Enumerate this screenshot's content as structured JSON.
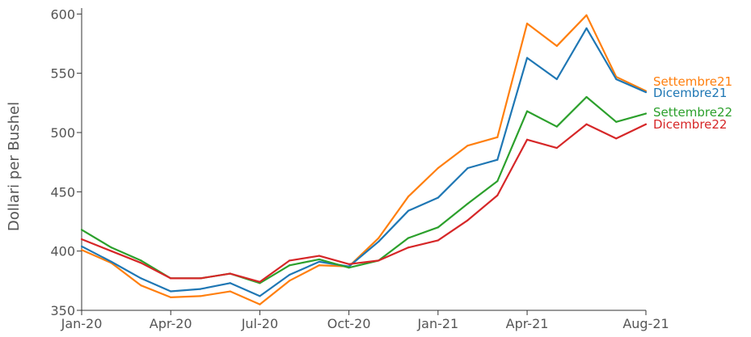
{
  "chart_data": {
    "type": "line",
    "title": "",
    "xlabel": "",
    "ylabel": "Dollari per Bushel",
    "x": [
      "2020-01",
      "2020-02",
      "2020-03",
      "2020-04",
      "2020-05",
      "2020-06",
      "2020-07",
      "2020-08",
      "2020-09",
      "2020-10",
      "2020-11",
      "2020-12",
      "2021-01",
      "2021-02",
      "2021-03",
      "2021-04",
      "2021-05",
      "2021-06",
      "2021-07",
      "2021-08"
    ],
    "x_ticks": [
      {
        "x": "2020-01",
        "label": "Jan-20"
      },
      {
        "x": "2020-04",
        "label": "Apr-20"
      },
      {
        "x": "2020-07",
        "label": "Jul-20"
      },
      {
        "x": "2020-10",
        "label": "Oct-20"
      },
      {
        "x": "2021-01",
        "label": "Jan-21"
      },
      {
        "x": "2021-04",
        "label": "Apr-21"
      },
      {
        "x": "2021-08",
        "label": "Aug-21"
      }
    ],
    "ylim": [
      350,
      605
    ],
    "y_ticks": [
      350,
      400,
      450,
      500,
      550,
      600
    ],
    "grid": false,
    "legend": "end-of-line labels",
    "series": [
      {
        "name": "Settembre21",
        "color": "#ff7f0e",
        "values": [
          401,
          390,
          371,
          361,
          362,
          366,
          355,
          375,
          388,
          387,
          411,
          446,
          470,
          489,
          496,
          592,
          573,
          599,
          547,
          535
        ]
      },
      {
        "name": "Dicembre21",
        "color": "#1f77b4",
        "values": [
          404,
          391,
          377,
          366,
          368,
          373,
          362,
          380,
          391,
          387,
          408,
          434,
          445,
          470,
          477,
          563,
          545,
          588,
          545,
          534
        ]
      },
      {
        "name": "Settembre22",
        "color": "#2ca02c",
        "values": [
          418,
          403,
          392,
          377,
          377,
          381,
          373,
          388,
          393,
          386,
          392,
          411,
          420,
          440,
          459,
          518,
          505,
          530,
          509,
          516
        ]
      },
      {
        "name": "Dicembre22",
        "color": "#d62728",
        "values": [
          410,
          400,
          390,
          377,
          377,
          381,
          374,
          392,
          396,
          389,
          392,
          403,
          409,
          426,
          447,
          494,
          487,
          507,
          495,
          507
        ]
      }
    ]
  }
}
